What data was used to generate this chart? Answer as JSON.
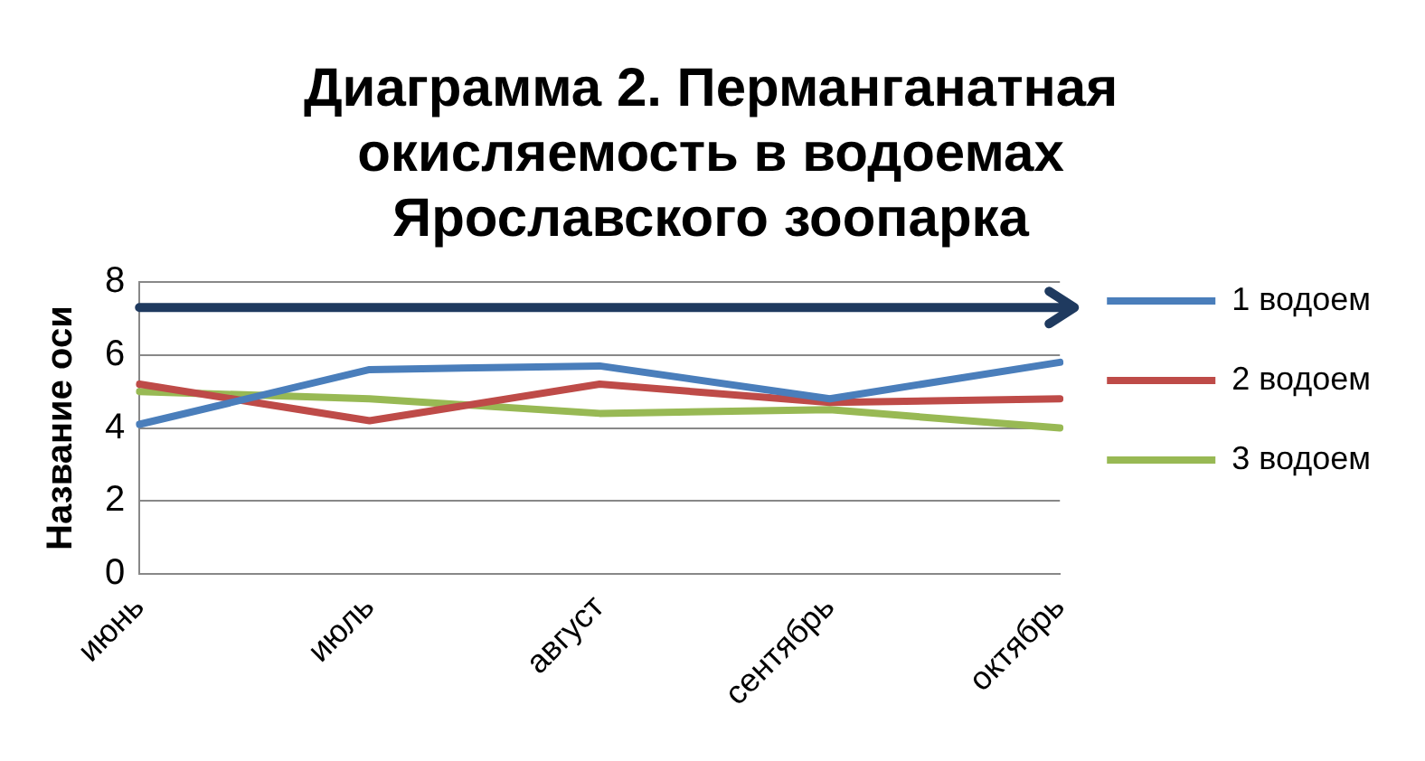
{
  "chart_data": {
    "type": "line",
    "title": "Диаграмма 2. Перманганатная окисляемость в водоемах Ярославского зоопарка",
    "ylabel": "Название оси",
    "categories": [
      "июнь",
      "июль",
      "август",
      "сентябрь",
      "октябрь"
    ],
    "series": [
      {
        "name": "1 водоем",
        "color": "#4a7ebb",
        "values": [
          4.1,
          5.6,
          5.7,
          4.8,
          5.8
        ]
      },
      {
        "name": "2 водоем",
        "color": "#be4b48",
        "values": [
          5.2,
          4.2,
          5.2,
          4.7,
          4.8
        ]
      },
      {
        "name": "3 водоем",
        "color": "#98b954",
        "values": [
          5.0,
          4.8,
          4.4,
          4.5,
          4.0
        ]
      }
    ],
    "ref_lines": [
      {
        "axis": "y",
        "value": 7.3,
        "color": "#1f3a5f",
        "line_style": "solid"
      }
    ],
    "ylim": [
      0,
      8
    ],
    "yticks": [
      0,
      2,
      4,
      6,
      8
    ],
    "grid": "y",
    "legend": "right",
    "marker": "none",
    "line_style": "solid"
  }
}
